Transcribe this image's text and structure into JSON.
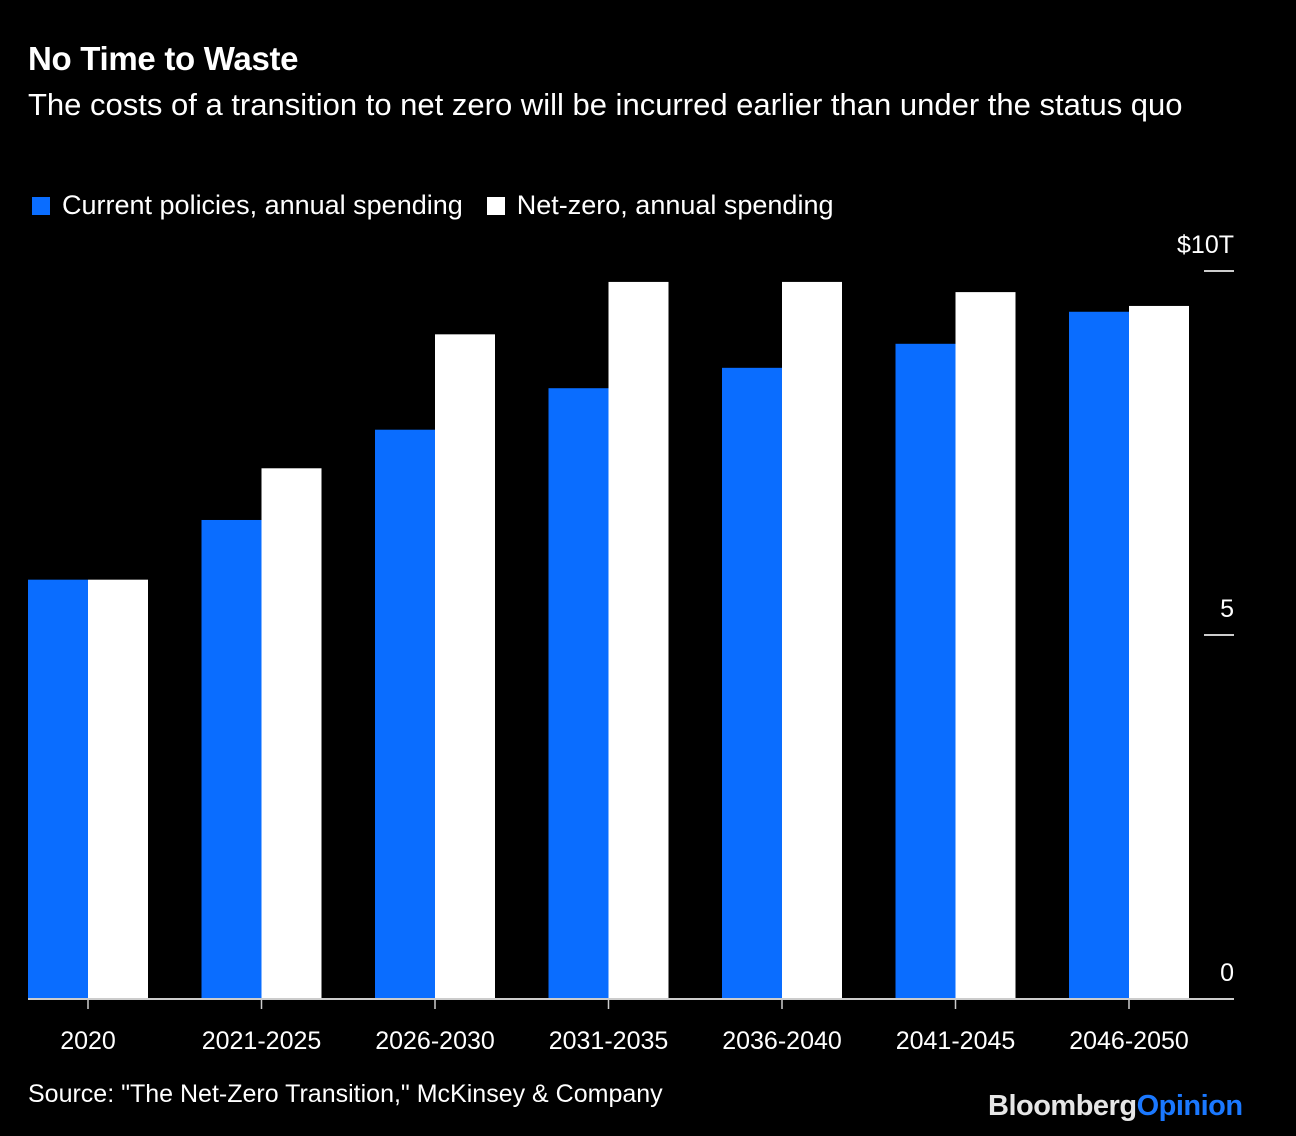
{
  "title": "No Time to Waste",
  "subtitle": "The costs of a transition to net zero will be incurred earlier than under the status quo",
  "source": "Source: \"The Net-Zero Transition,\" McKinsey & Company",
  "brand": {
    "part1": "Bloomberg",
    "part2": "Opinion"
  },
  "chart_data": {
    "type": "bar",
    "title": "No Time to Waste",
    "subtitle": "The costs of a transition to net zero will be incurred earlier than under the status quo",
    "xlabel": "",
    "ylabel": "",
    "categories": [
      "2020",
      "2021-2025",
      "2026-2030",
      "2031-2035",
      "2036-2040",
      "2041-2045",
      "2046-2050"
    ],
    "series": [
      {
        "name": "Current policies, annual spending",
        "color": "#0a6dff",
        "values": [
          5.76,
          6.58,
          7.82,
          8.39,
          8.67,
          9.0,
          9.44
        ]
      },
      {
        "name": "Net-zero, annual spending",
        "color": "#ffffff",
        "values": [
          5.76,
          7.29,
          9.13,
          9.85,
          9.85,
          9.71,
          9.52
        ]
      }
    ],
    "ylim": [
      0,
      10
    ],
    "yticks": [
      {
        "value": 0,
        "label": "0"
      },
      {
        "value": 5,
        "label": "5"
      },
      {
        "value": 10,
        "label": "$10T"
      }
    ],
    "yaxis_side": "right",
    "legend_position": "top-left",
    "grid": false
  }
}
